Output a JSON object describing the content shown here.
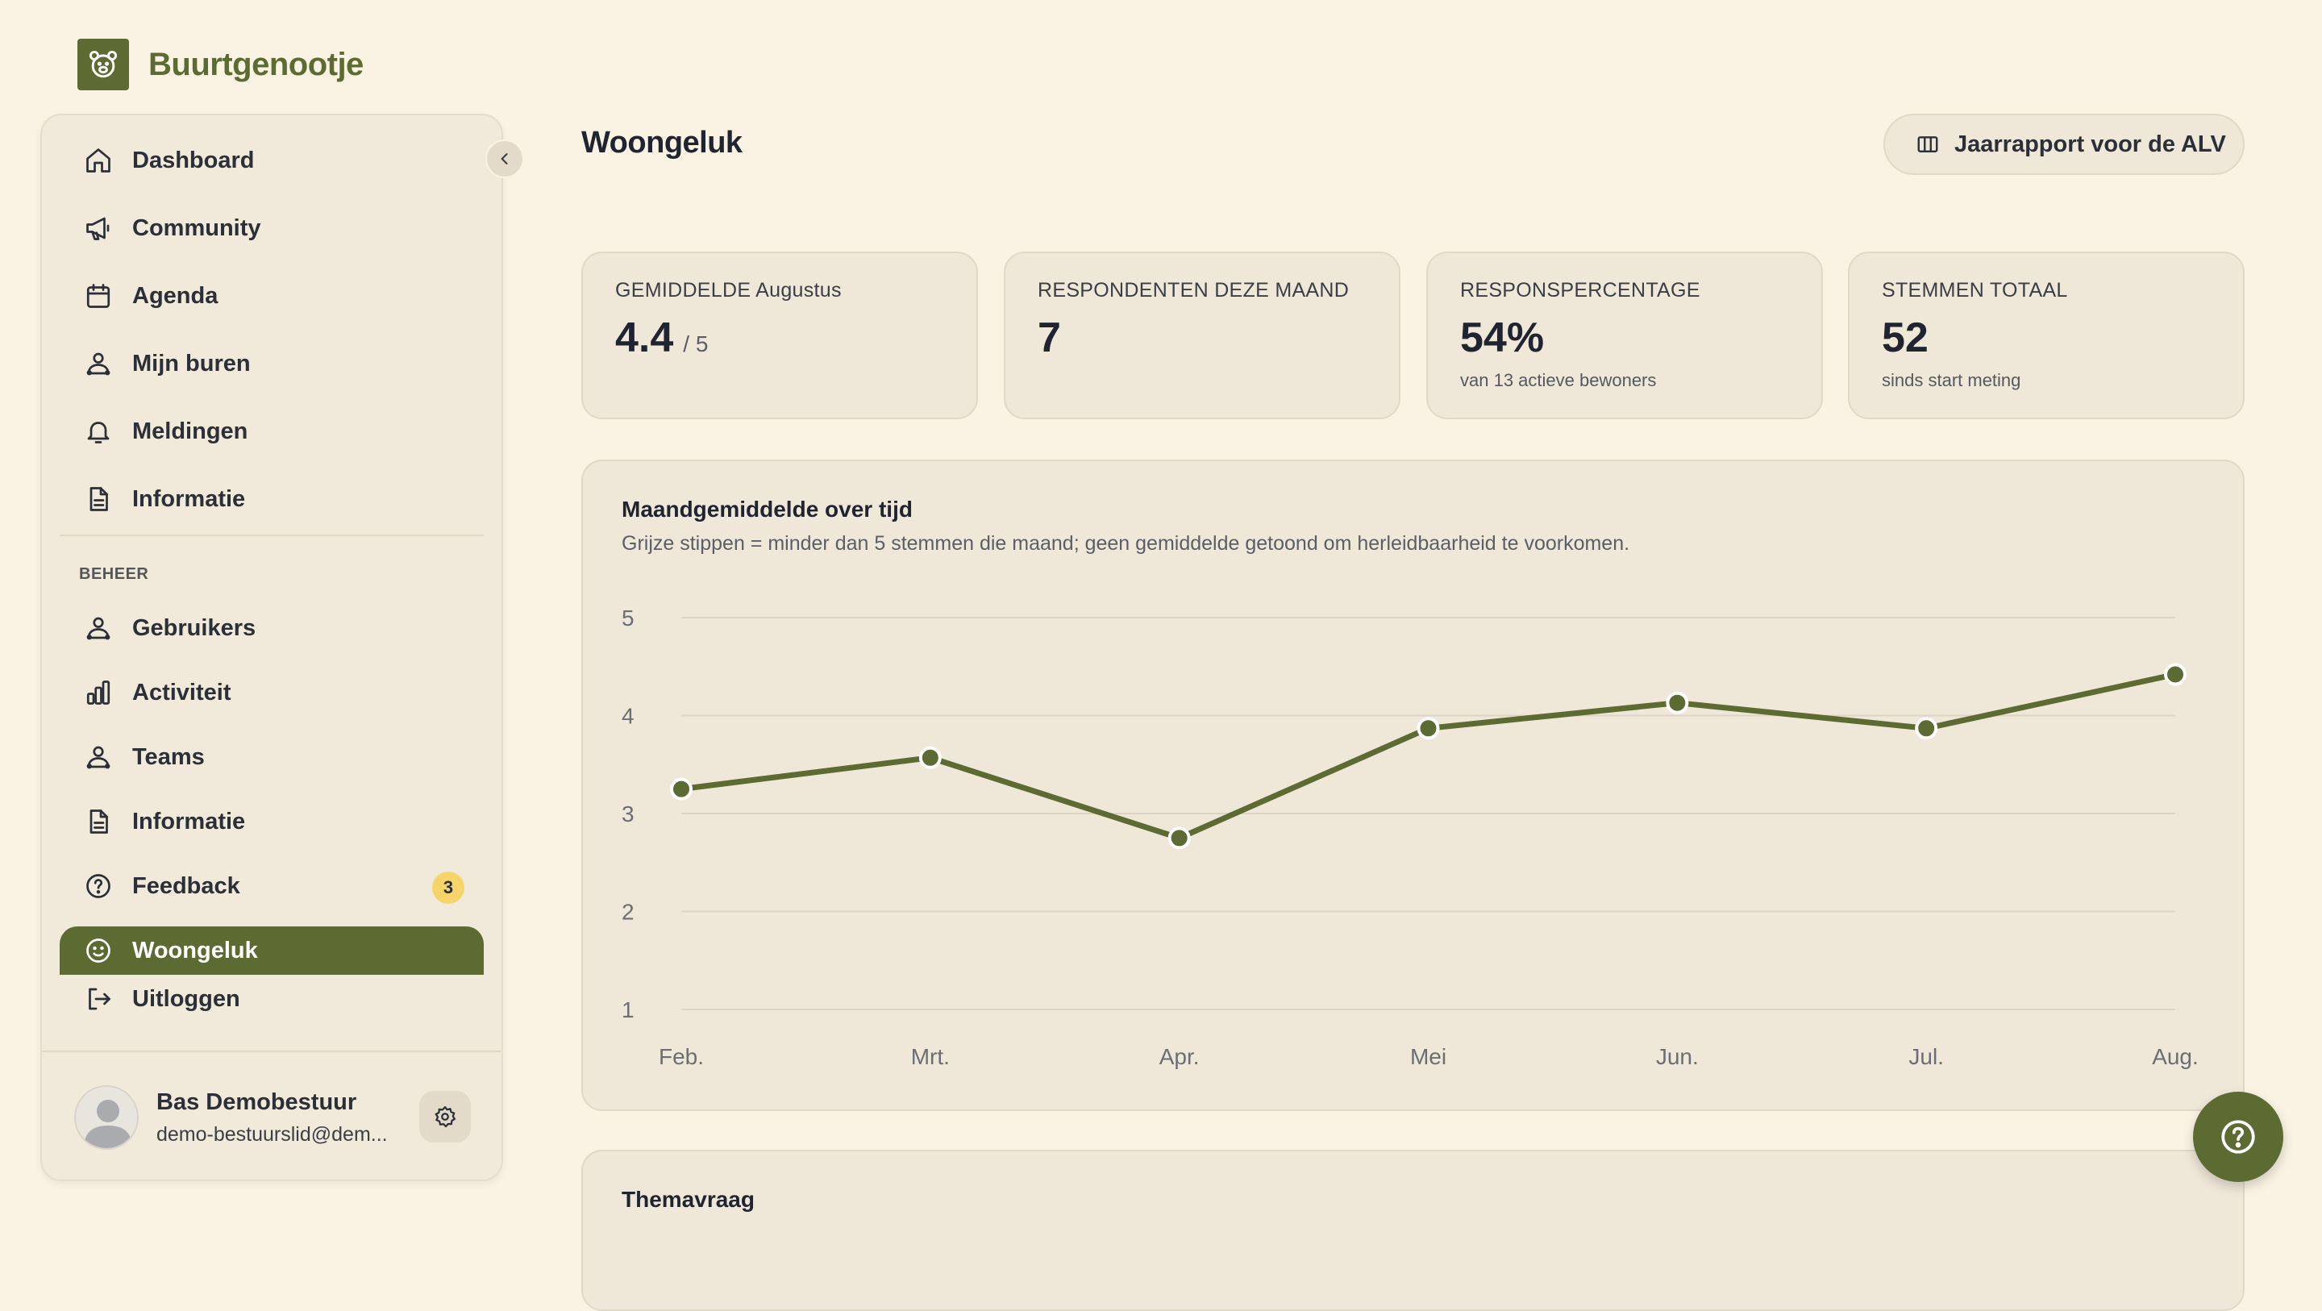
{
  "app": {
    "name": "Buurtgenootje",
    "logo_icon": "bear-icon"
  },
  "sidebar": {
    "main_items": [
      {
        "label": "Dashboard",
        "icon": "home-icon"
      },
      {
        "label": "Community",
        "icon": "megaphone-icon"
      },
      {
        "label": "Agenda",
        "icon": "calendar-icon"
      },
      {
        "label": "Mijn buren",
        "icon": "people-icon"
      },
      {
        "label": "Meldingen",
        "icon": "bell-icon"
      },
      {
        "label": "Informatie",
        "icon": "document-icon"
      }
    ],
    "section_label": "BEHEER",
    "admin_items": [
      {
        "label": "Gebruikers",
        "icon": "people-icon"
      },
      {
        "label": "Activiteit",
        "icon": "bar-chart-icon"
      },
      {
        "label": "Teams",
        "icon": "people-icon"
      },
      {
        "label": "Informatie",
        "icon": "document-icon"
      },
      {
        "label": "Feedback",
        "icon": "question-circle-icon",
        "badge": "3"
      },
      {
        "label": "Woongeluk",
        "icon": "smiley-icon",
        "active": true
      }
    ],
    "logout_label": "Uitloggen",
    "user": {
      "name": "Bas Demobestuur",
      "email": "demo-bestuurslid@dem..."
    }
  },
  "header": {
    "title": "Woongeluk",
    "report_button": "Jaarrapport voor de ALV"
  },
  "stats": [
    {
      "label": "GEMIDDELDE Augustus",
      "value": "4.4",
      "suffix": "/ 5",
      "sub": ""
    },
    {
      "label": "RESPONDENTEN DEZE MAAND",
      "value": "7",
      "suffix": "",
      "sub": ""
    },
    {
      "label": "RESPONSPERCENTAGE",
      "value": "54%",
      "suffix": "",
      "sub": "van 13 actieve bewoners"
    },
    {
      "label": "STEMMEN TOTAAL",
      "value": "52",
      "suffix": "",
      "sub": "sinds start meting"
    }
  ],
  "chart_card": {
    "title": "Maandgemiddelde over tijd",
    "subtitle": "Grijze stippen = minder dan 5 stemmen die maand; geen gemiddelde getoond om herleidbaarheid te voorkomen."
  },
  "chart_data": {
    "type": "line",
    "categories": [
      "Feb.",
      "Mrt.",
      "Apr.",
      "Mei",
      "Jun.",
      "Jul.",
      "Aug."
    ],
    "values": [
      3.25,
      3.57,
      2.75,
      3.87,
      4.13,
      3.87,
      4.42
    ],
    "ylim": [
      1,
      5
    ],
    "yticks": [
      "1",
      "2",
      "3",
      "4",
      "5"
    ],
    "grid": true,
    "color": "#5c6b32"
  },
  "theme_card": {
    "title": "Themavraag"
  }
}
